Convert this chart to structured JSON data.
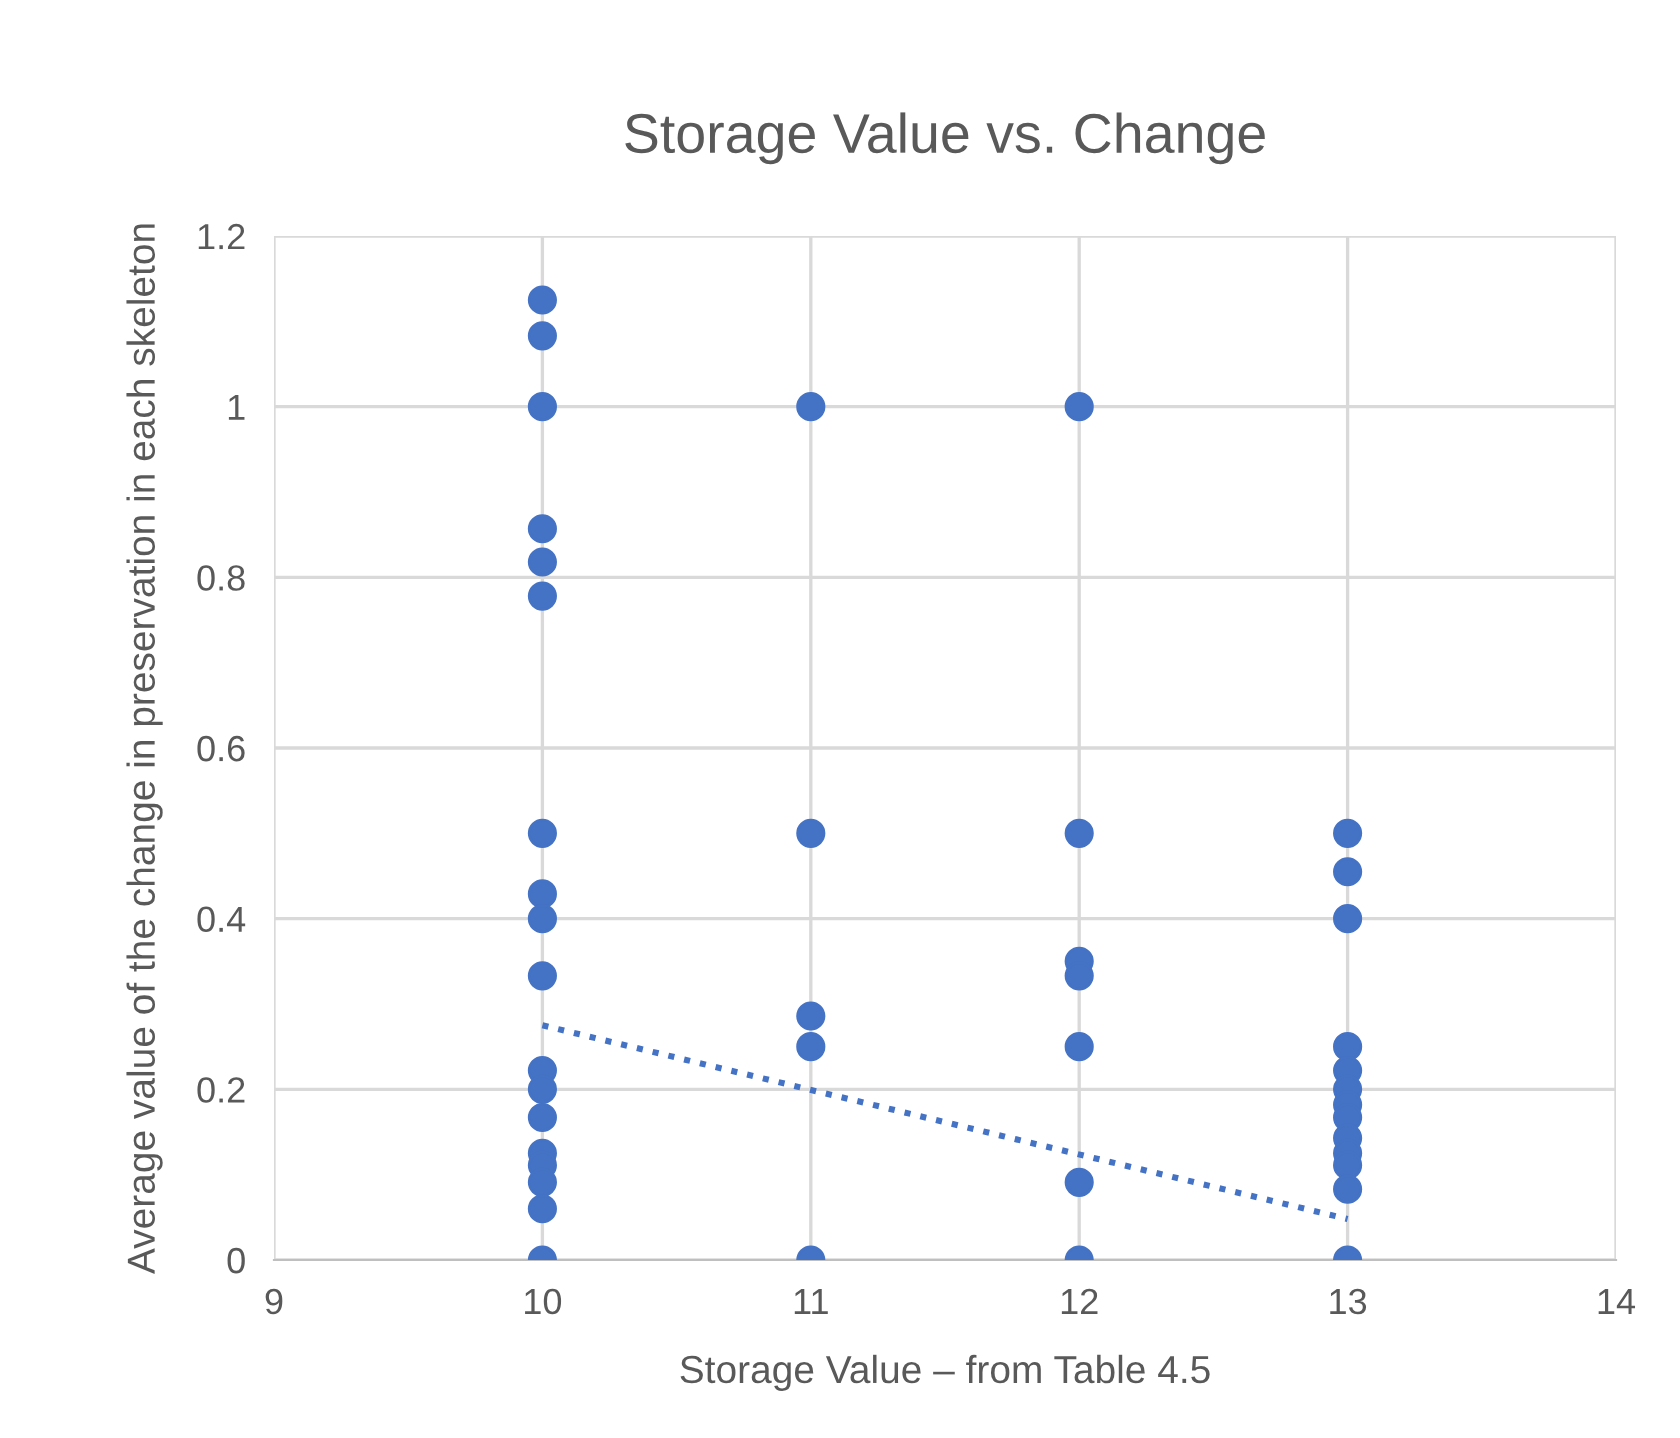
{
  "chart_data": {
    "type": "scatter",
    "title": "Storage Value vs. Change",
    "xlabel": "Storage Value – from Table 4.5",
    "ylabel": "Average value of the change in preservation in each skeleton",
    "series": [
      {
        "color": "#4472c4",
        "marker": "circle",
        "x": [
          10,
          10,
          10,
          10,
          10,
          10,
          10,
          10,
          10,
          10,
          10,
          10,
          10,
          10,
          10,
          10,
          10,
          10,
          11,
          11,
          11,
          11,
          11,
          12,
          12,
          12,
          12,
          12,
          12,
          12,
          13,
          13,
          13,
          13,
          13,
          13,
          13,
          13,
          13,
          13,
          13,
          13,
          13
        ],
        "values": [
          1.125,
          1.083,
          1.0,
          0.857,
          0.818,
          0.778,
          0.5,
          0.429,
          0.4,
          0.333,
          0.222,
          0.2,
          0.167,
          0.125,
          0.111,
          0.091,
          0.06,
          0,
          1.0,
          0.5,
          0.286,
          0.25,
          0,
          1.0,
          0.5,
          0.35,
          0.333,
          0.25,
          0.091,
          0,
          0.5,
          0.455,
          0.4,
          0.25,
          0.222,
          0.2,
          0.182,
          0.167,
          0.143,
          0.125,
          0.111,
          0.083,
          0
        ]
      },
      {
        "type": "line",
        "color": "#4472c4",
        "line_style": "dotted",
        "marker": "none",
        "x": [
          10,
          13
        ],
        "values": [
          0.275,
          0.048
        ]
      }
    ],
    "xlim": [
      9,
      14
    ],
    "xticks": [
      9,
      10,
      11,
      12,
      13,
      14
    ],
    "ylim": [
      0,
      1.2
    ],
    "yticks": [
      0,
      0.2,
      0.4,
      0.6,
      0.8,
      1,
      1.2
    ],
    "grid": true
  }
}
